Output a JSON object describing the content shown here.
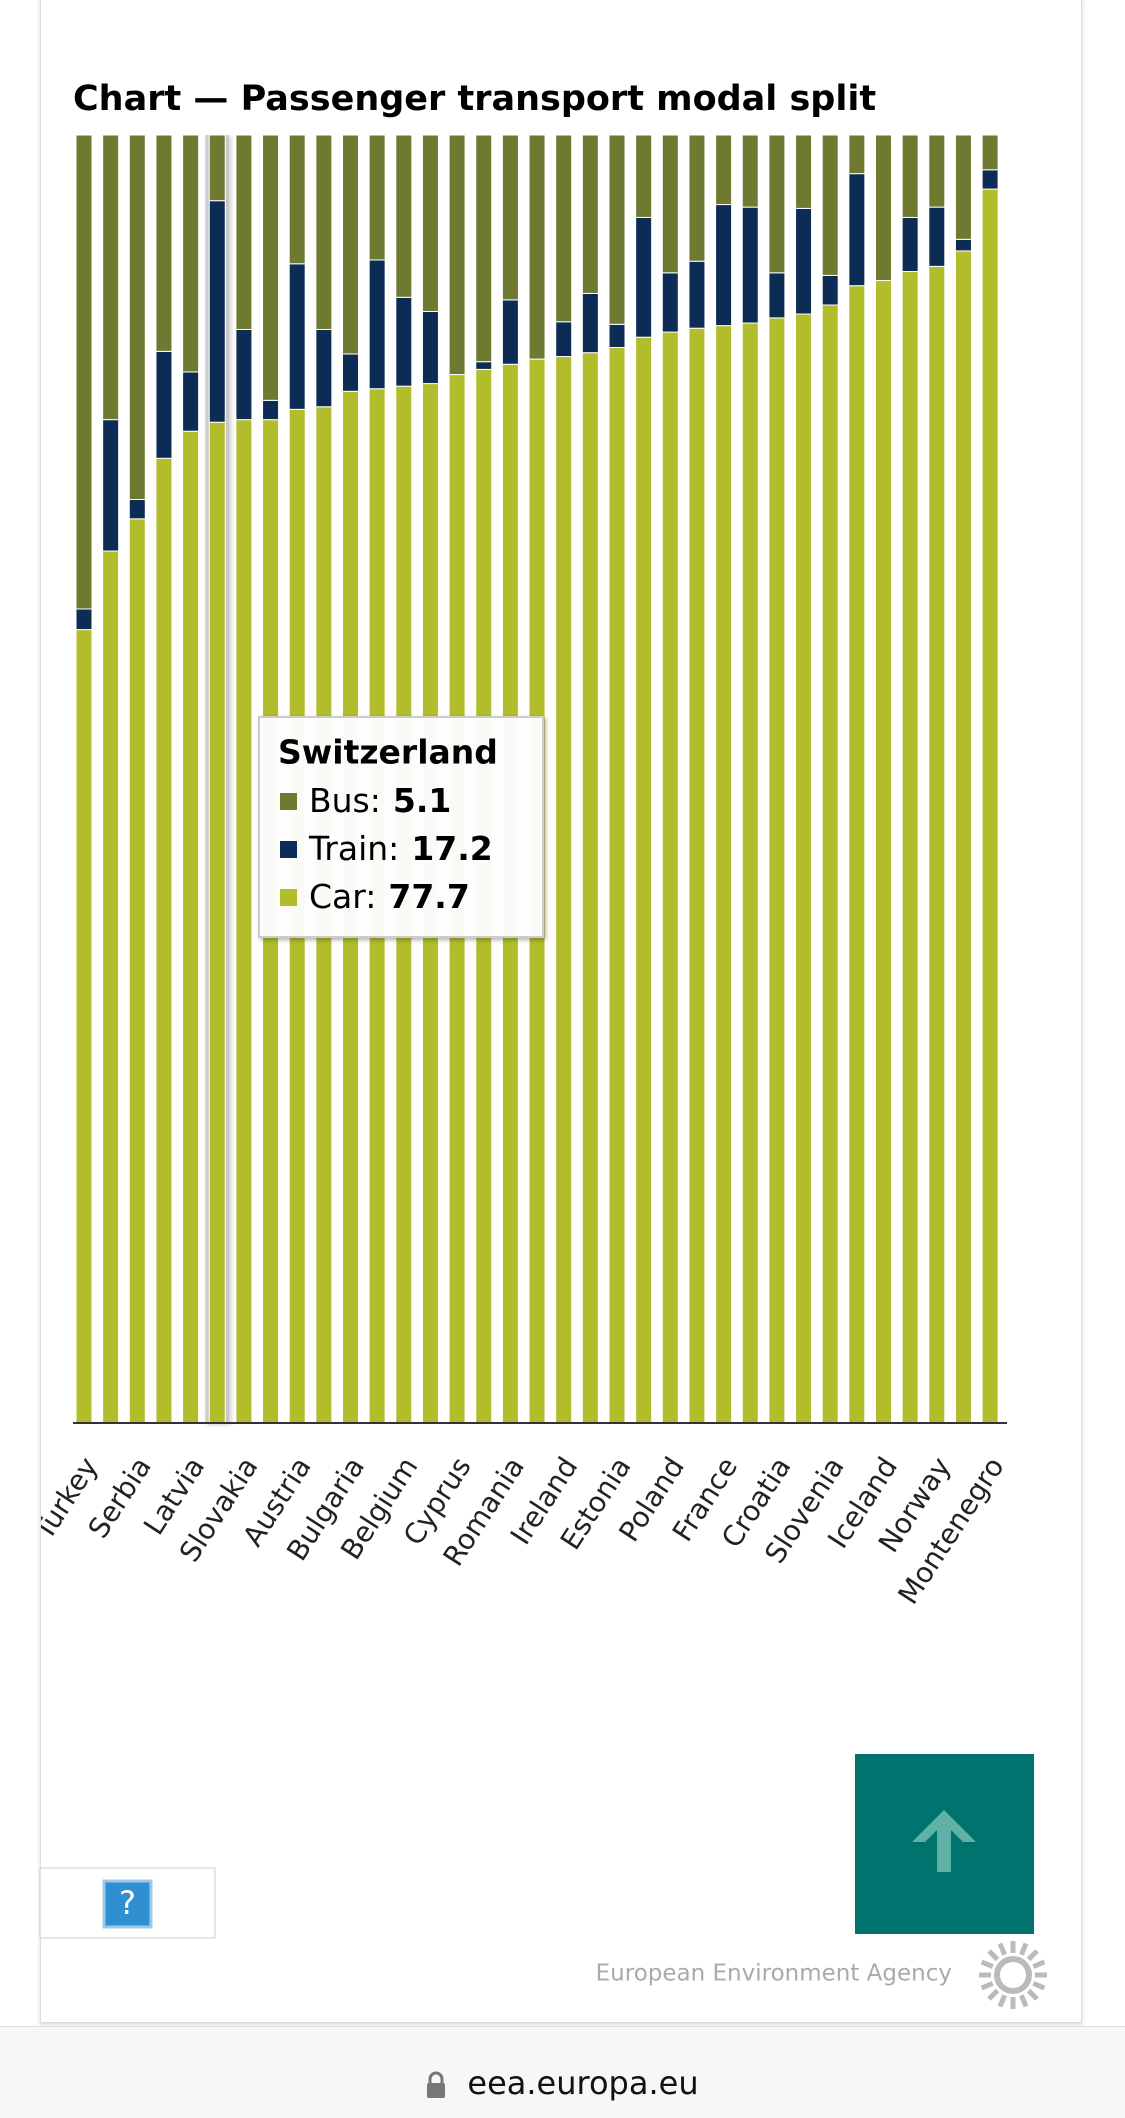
{
  "chart_data": {
    "type": "bar",
    "stacked": true,
    "title": "Chart — Passenger transport modal split",
    "categories": [
      "Turkey",
      null,
      "Serbia",
      null,
      "Latvia",
      null,
      "Slovakia",
      null,
      "Austria",
      null,
      "Bulgaria",
      null,
      "Belgium",
      null,
      "Cyprus",
      null,
      "Romania",
      null,
      "Ireland",
      null,
      "Estonia",
      null,
      "Poland",
      null,
      "France",
      null,
      "Croatia",
      null,
      "Slovenia",
      null,
      "Iceland",
      null,
      "Norway",
      null,
      "Montenegro"
    ],
    "series": [
      {
        "name": "Bus",
        "color": "#6f7a30",
        "values": [
          36.8,
          22.1,
          28.3,
          16.8,
          18.4,
          5.1,
          15.1,
          20.6,
          10.0,
          15.1,
          17.0,
          9.7,
          12.6,
          13.7,
          18.6,
          17.6,
          12.8,
          17.4,
          14.5,
          12.3,
          14.7,
          6.4,
          10.7,
          9.8,
          5.4,
          5.6,
          10.7,
          5.7,
          10.9,
          3.0,
          11.3,
          6.4,
          5.6,
          8.1,
          2.7
        ]
      },
      {
        "name": "Train",
        "color": "#0c2c56",
        "values": [
          1.6,
          10.2,
          1.5,
          8.3,
          4.6,
          17.2,
          7.0,
          1.5,
          11.3,
          6.0,
          2.9,
          10.0,
          6.9,
          5.6,
          0,
          0.6,
          5.0,
          0,
          2.7,
          4.6,
          1.8,
          9.3,
          4.6,
          5.2,
          9.4,
          9.0,
          3.5,
          8.2,
          2.3,
          8.7,
          0,
          4.2,
          4.6,
          0.9,
          1.5
        ]
      },
      {
        "name": "Car",
        "color": "#b1bd2b",
        "values": [
          61.6,
          67.7,
          70.2,
          74.9,
          77.0,
          77.7,
          77.9,
          77.9,
          78.7,
          78.9,
          80.1,
          80.3,
          80.5,
          80.7,
          81.4,
          81.8,
          82.2,
          82.6,
          82.8,
          83.1,
          83.5,
          84.3,
          84.7,
          85.0,
          85.2,
          85.4,
          85.8,
          86.1,
          86.8,
          88.3,
          88.7,
          89.4,
          89.8,
          91.0,
          95.8
        ]
      }
    ],
    "ylim": [
      0,
      100
    ],
    "tooltip": {
      "title": "Switzerland",
      "index": 5,
      "rows": [
        "Bus:",
        "Train:",
        "Car:"
      ]
    }
  },
  "help_button": "?",
  "footer": {
    "agency": "European Environment Agency"
  },
  "browser": {
    "url": "eea.europa.eu"
  }
}
